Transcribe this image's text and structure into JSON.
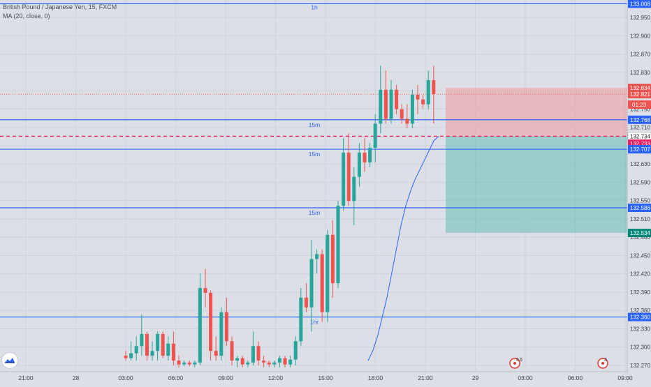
{
  "header": {
    "symbol_line": "British Pound / Japanese Yen, 15, FXCM",
    "indicator_line": "MA (20, close, 0)"
  },
  "colors": {
    "background": "#dcdfe6",
    "up": "#26a69a",
    "down": "#ef5350",
    "level_line": "#2962ff",
    "ma_line": "#2962ff",
    "price_dotted": "#ef5350",
    "entry_dashed": "#e91e63",
    "stop_zone": "rgba(239,154,154,0.55)",
    "target_zone": "rgba(77,182,172,0.45)",
    "axis_text": "#3a3e4a"
  },
  "chart_data": {
    "type": "candlestick",
    "ylim": [
      132.26,
      133.01
    ],
    "y_ticks": [
      "132.270",
      "132.300",
      "132.330",
      "132.360",
      "132.390",
      "132.420",
      "132.450",
      "132.480",
      "132.510",
      "132.550",
      "132.590",
      "132.630",
      "132.670",
      "132.710",
      "132.750",
      "132.790",
      "132.830",
      "132.870",
      "132.900",
      "132.950"
    ],
    "x_ticks": [
      "21:00",
      "28",
      "03:00",
      "06:00",
      "09:00",
      "12:00",
      "15:00",
      "18:00",
      "21:00",
      "29",
      "03:00",
      "06:00",
      "09:00"
    ],
    "horizontal_levels": [
      {
        "price": 133.008,
        "label": "1h"
      },
      {
        "price": 132.768,
        "label": "15m"
      },
      {
        "price": 132.707,
        "label": "15m"
      },
      {
        "price": 132.586,
        "label": "15m"
      },
      {
        "price": 132.36,
        "label": "1hr"
      }
    ],
    "position": {
      "entry": 132.734,
      "stop": 132.834,
      "target": 132.534,
      "current": 132.821,
      "countdown": "01:23"
    },
    "price_labels": [
      "133.008",
      "132.834",
      "132.821",
      "132.768",
      "132.734",
      "132.733",
      "132.707",
      "132.586",
      "132.534",
      "132.360"
    ],
    "event_markers": [
      {
        "label": "6"
      },
      {
        "label": "6"
      },
      {
        "label": "3"
      }
    ],
    "candles": [
      {
        "o": 132.28,
        "h": 132.29,
        "l": 132.27,
        "c": 132.275
      },
      {
        "o": 132.275,
        "h": 132.31,
        "l": 132.27,
        "c": 132.285
      },
      {
        "o": 132.285,
        "h": 132.32,
        "l": 132.27,
        "c": 132.3
      },
      {
        "o": 132.3,
        "h": 132.365,
        "l": 132.28,
        "c": 132.325
      },
      {
        "o": 132.325,
        "h": 132.33,
        "l": 132.27,
        "c": 132.28
      },
      {
        "o": 132.28,
        "h": 132.31,
        "l": 132.27,
        "c": 132.29
      },
      {
        "o": 132.29,
        "h": 132.33,
        "l": 132.27,
        "c": 132.325
      },
      {
        "o": 132.325,
        "h": 132.33,
        "l": 132.275,
        "c": 132.28
      },
      {
        "o": 132.28,
        "h": 132.32,
        "l": 132.27,
        "c": 132.305
      },
      {
        "o": 132.305,
        "h": 132.33,
        "l": 132.26,
        "c": 132.27
      },
      {
        "o": 132.27,
        "h": 132.28,
        "l": 132.255,
        "c": 132.262
      },
      {
        "o": 132.262,
        "h": 132.27,
        "l": 132.258,
        "c": 132.266
      },
      {
        "o": 132.266,
        "h": 132.27,
        "l": 132.258,
        "c": 132.262
      },
      {
        "o": 132.262,
        "h": 132.27,
        "l": 132.256,
        "c": 132.266
      },
      {
        "o": 132.266,
        "h": 132.45,
        "l": 132.26,
        "c": 132.42
      },
      {
        "o": 132.42,
        "h": 132.46,
        "l": 132.38,
        "c": 132.41
      },
      {
        "o": 132.41,
        "h": 132.415,
        "l": 132.27,
        "c": 132.29
      },
      {
        "o": 132.29,
        "h": 132.32,
        "l": 132.27,
        "c": 132.28
      },
      {
        "o": 132.28,
        "h": 132.38,
        "l": 132.27,
        "c": 132.37
      },
      {
        "o": 132.37,
        "h": 132.4,
        "l": 132.3,
        "c": 132.31
      },
      {
        "o": 132.31,
        "h": 132.32,
        "l": 132.26,
        "c": 132.27
      },
      {
        "o": 132.27,
        "h": 132.28,
        "l": 132.256,
        "c": 132.275
      },
      {
        "o": 132.275,
        "h": 132.28,
        "l": 132.256,
        "c": 132.262
      },
      {
        "o": 132.262,
        "h": 132.27,
        "l": 132.256,
        "c": 132.266
      },
      {
        "o": 132.266,
        "h": 132.33,
        "l": 132.26,
        "c": 132.3
      },
      {
        "o": 132.3,
        "h": 132.31,
        "l": 132.26,
        "c": 132.27
      },
      {
        "o": 132.27,
        "h": 132.28,
        "l": 132.256,
        "c": 132.266
      },
      {
        "o": 132.266,
        "h": 132.27,
        "l": 132.256,
        "c": 132.262
      },
      {
        "o": 132.262,
        "h": 132.27,
        "l": 132.256,
        "c": 132.266
      },
      {
        "o": 132.266,
        "h": 132.28,
        "l": 132.256,
        "c": 132.275
      },
      {
        "o": 132.275,
        "h": 132.28,
        "l": 132.256,
        "c": 132.262
      },
      {
        "o": 132.262,
        "h": 132.28,
        "l": 132.256,
        "c": 132.272
      },
      {
        "o": 132.272,
        "h": 132.32,
        "l": 132.26,
        "c": 132.31
      },
      {
        "o": 132.31,
        "h": 132.42,
        "l": 132.3,
        "c": 132.4
      },
      {
        "o": 132.4,
        "h": 132.43,
        "l": 132.37,
        "c": 132.38
      },
      {
        "o": 132.38,
        "h": 132.52,
        "l": 132.33,
        "c": 132.48
      },
      {
        "o": 132.48,
        "h": 132.5,
        "l": 132.45,
        "c": 132.49
      },
      {
        "o": 132.49,
        "h": 132.5,
        "l": 132.35,
        "c": 132.37
      },
      {
        "o": 132.37,
        "h": 132.54,
        "l": 132.35,
        "c": 132.53
      },
      {
        "o": 132.53,
        "h": 132.56,
        "l": 132.4,
        "c": 132.43
      },
      {
        "o": 132.43,
        "h": 132.6,
        "l": 132.42,
        "c": 132.59
      },
      {
        "o": 132.59,
        "h": 132.73,
        "l": 132.58,
        "c": 132.7
      },
      {
        "o": 132.7,
        "h": 132.74,
        "l": 132.59,
        "c": 132.6
      },
      {
        "o": 132.6,
        "h": 132.67,
        "l": 132.55,
        "c": 132.65
      },
      {
        "o": 132.65,
        "h": 132.72,
        "l": 132.63,
        "c": 132.7
      },
      {
        "o": 132.7,
        "h": 132.73,
        "l": 132.66,
        "c": 132.68
      },
      {
        "o": 132.68,
        "h": 132.72,
        "l": 132.67,
        "c": 132.71
      },
      {
        "o": 132.71,
        "h": 132.78,
        "l": 132.68,
        "c": 132.76
      },
      {
        "o": 132.76,
        "h": 132.88,
        "l": 132.74,
        "c": 132.83
      },
      {
        "o": 132.83,
        "h": 132.87,
        "l": 132.76,
        "c": 132.77
      },
      {
        "o": 132.77,
        "h": 132.85,
        "l": 132.76,
        "c": 132.83
      },
      {
        "o": 132.83,
        "h": 132.84,
        "l": 132.78,
        "c": 132.79
      },
      {
        "o": 132.79,
        "h": 132.8,
        "l": 132.76,
        "c": 132.77
      },
      {
        "o": 132.77,
        "h": 132.8,
        "l": 132.75,
        "c": 132.76
      },
      {
        "o": 132.76,
        "h": 132.83,
        "l": 132.75,
        "c": 132.82
      },
      {
        "o": 132.82,
        "h": 132.84,
        "l": 132.78,
        "c": 132.81
      },
      {
        "o": 132.81,
        "h": 132.82,
        "l": 132.79,
        "c": 132.8
      },
      {
        "o": 132.8,
        "h": 132.87,
        "l": 132.79,
        "c": 132.85
      },
      {
        "o": 132.85,
        "h": 132.88,
        "l": 132.76,
        "c": 132.821
      }
    ],
    "ma": [
      132.27,
      132.29,
      132.32,
      132.36,
      132.4,
      132.45,
      132.5,
      132.55,
      132.59,
      132.62,
      132.645,
      132.665,
      132.685,
      132.705,
      132.725,
      132.734
    ]
  }
}
